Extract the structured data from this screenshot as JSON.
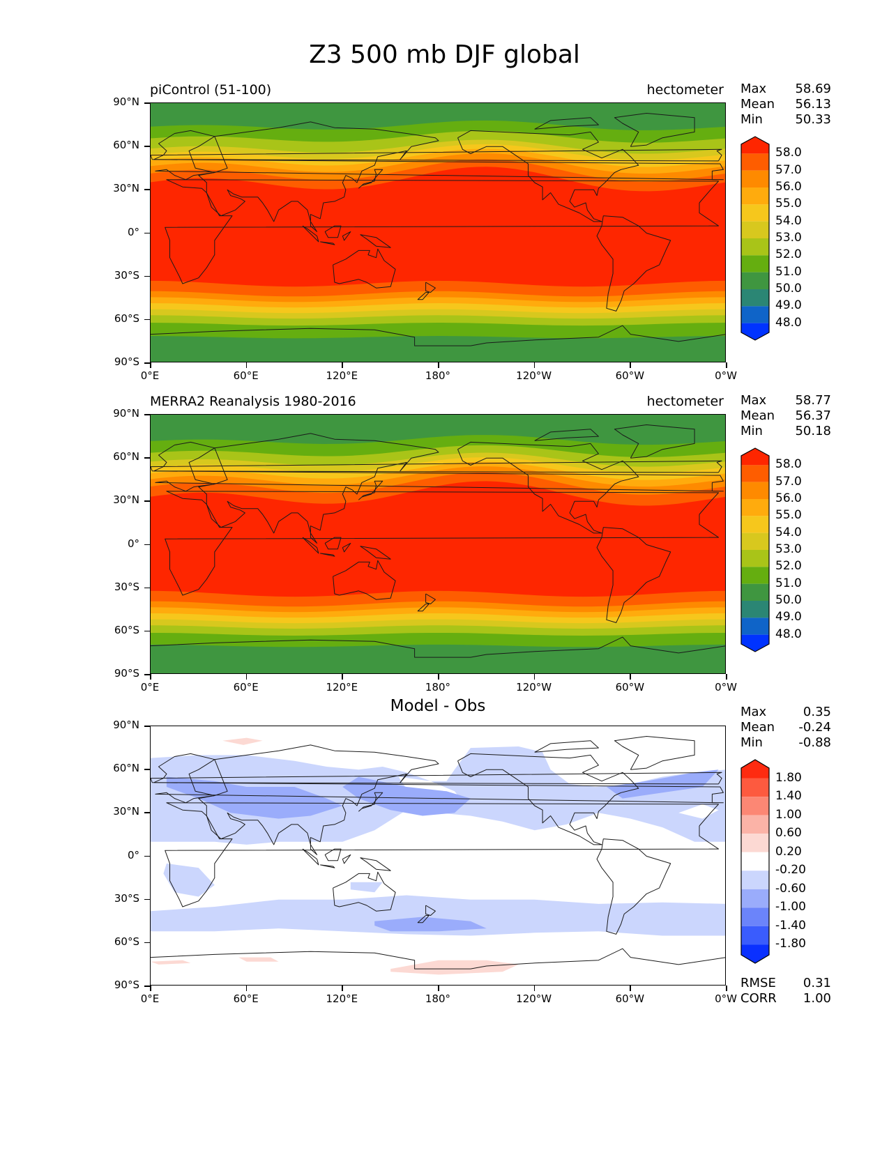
{
  "figure": {
    "title": "Z3 500 mb DJF global"
  },
  "axes": {
    "lat_labels": [
      "90°N",
      "60°N",
      "30°N",
      "0°",
      "30°S",
      "60°S",
      "90°S"
    ],
    "lon_labels": [
      "0°E",
      "60°E",
      "120°E",
      "180°",
      "120°W",
      "60°W",
      "0°W"
    ]
  },
  "panels": [
    {
      "left_title": "piControl (51-100)",
      "right_title": "hectometer",
      "center_title": "",
      "stats": [
        {
          "label": "Max",
          "value": "58.69"
        },
        {
          "label": "Mean",
          "value": "56.13"
        },
        {
          "label": "Min",
          "value": "50.33"
        }
      ],
      "extra_stats": [],
      "colorbar": {
        "labels": [
          "58.0",
          "57.0",
          "56.0",
          "55.0",
          "54.0",
          "53.0",
          "52.0",
          "51.0",
          "50.0",
          "49.0",
          "48.0"
        ],
        "colors": [
          "#fe2600",
          "#fe5d00",
          "#fe8a00",
          "#ffab0d",
          "#f6c71c",
          "#d8c81e",
          "#a9c418",
          "#65ae10",
          "#3f9640",
          "#2b8674",
          "#0f64c8",
          "#0033ff"
        ]
      },
      "field": {
        "kind": "absolute",
        "band_colors": [
          "#3f9640",
          "#65ae10",
          "#a9c418",
          "#d8c81e",
          "#f6c71c",
          "#ffab0d",
          "#fe8a00",
          "#fe5d00",
          "#fe2600"
        ]
      }
    },
    {
      "left_title": "MERRA2 Reanalysis 1980-2016",
      "right_title": "hectometer",
      "center_title": "",
      "stats": [
        {
          "label": "Max",
          "value": "58.77"
        },
        {
          "label": "Mean",
          "value": "56.37"
        },
        {
          "label": "Min",
          "value": "50.18"
        }
      ],
      "extra_stats": [],
      "colorbar": {
        "labels": [
          "58.0",
          "57.0",
          "56.0",
          "55.0",
          "54.0",
          "53.0",
          "52.0",
          "51.0",
          "50.0",
          "49.0",
          "48.0"
        ],
        "colors": [
          "#fe2600",
          "#fe5d00",
          "#fe8a00",
          "#ffab0d",
          "#f6c71c",
          "#d8c81e",
          "#a9c418",
          "#65ae10",
          "#3f9640",
          "#2b8674",
          "#0f64c8",
          "#0033ff"
        ]
      },
      "field": {
        "kind": "absolute",
        "band_colors": [
          "#3f9640",
          "#65ae10",
          "#a9c418",
          "#d8c81e",
          "#f6c71c",
          "#ffab0d",
          "#fe8a00",
          "#fe5d00",
          "#fe2600"
        ]
      }
    },
    {
      "left_title": "",
      "right_title": "",
      "center_title": "Model - Obs",
      "stats": [
        {
          "label": "Max",
          "value": "0.35"
        },
        {
          "label": "Mean",
          "value": "-0.24"
        },
        {
          "label": "Min",
          "value": "-0.88"
        }
      ],
      "extra_stats": [
        {
          "label": "RMSE",
          "value": "0.31"
        },
        {
          "label": "CORR",
          "value": "1.00"
        }
      ],
      "colorbar": {
        "labels": [
          "1.80",
          "1.40",
          "1.00",
          "0.60",
          "0.20",
          "-0.20",
          "-0.60",
          "-1.00",
          "-1.40",
          "-1.80"
        ],
        "colors": [
          "#fe2b10",
          "#fd5a3f",
          "#fc8774",
          "#fbb3a7",
          "#fcd9d3",
          "#ffffff",
          "#cbd6fd",
          "#9aacfb",
          "#6b84fa",
          "#3a5cfd",
          "#0a30ff"
        ]
      },
      "field": {
        "kind": "difference",
        "band_colors": [
          "#cbd6fd",
          "#9aacfb",
          "#fcd9d3"
        ]
      }
    }
  ]
}
